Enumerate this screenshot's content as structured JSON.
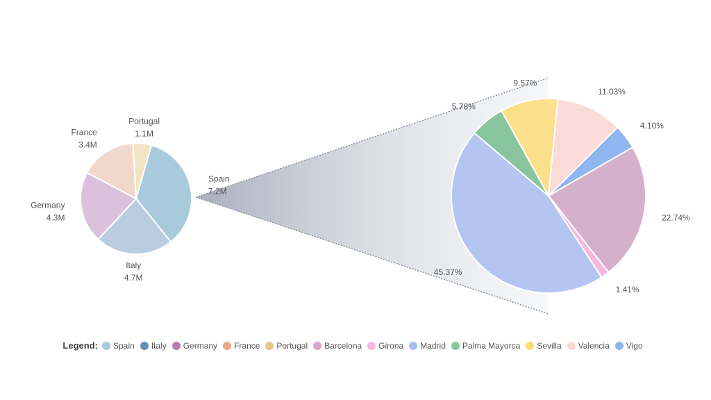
{
  "chart_data": [
    {
      "type": "pie",
      "categories": [
        "Spain",
        "Italy",
        "Germany",
        "France",
        "Portugal"
      ],
      "values": [
        7.2,
        4.7,
        4.3,
        3.4,
        1.1
      ],
      "value_labels": [
        "7.2M",
        "4.7M",
        "4.3M",
        "3.4M",
        "1.1M"
      ],
      "colors": [
        "#a8cadb",
        "#b9cde0",
        "#dcc1dc",
        "#f0d9cc",
        "#f2e3c3"
      ],
      "title": "",
      "exploded_category": "Spain"
    },
    {
      "type": "pie",
      "categories": [
        "Barcelona",
        "Girona",
        "Madrid",
        "Palma Mayorca",
        "Sevilla",
        "Valencia",
        "Vigo"
      ],
      "values": [
        22.74,
        1.41,
        45.37,
        5.78,
        9.57,
        11.03,
        4.1
      ],
      "value_labels": [
        "22.74%",
        "1.41%",
        "45.37%",
        "5.78%",
        "9.57%",
        "11.03%",
        "4.10%"
      ],
      "colors": [
        "#d4b0cb",
        "#f5b8e0",
        "#b3c5f0",
        "#88c49d",
        "#fbdf8a",
        "#fadbd8",
        "#8fb6ee"
      ],
      "title": "",
      "parent_category": "Spain"
    }
  ],
  "legend": {
    "title": "Legend:",
    "items": [
      {
        "label": "Spain",
        "color": "#a8cadb"
      },
      {
        "label": "Italy",
        "color": "#6b8fb3"
      },
      {
        "label": "Germany",
        "color": "#b57fa8"
      },
      {
        "label": "France",
        "color": "#e8ab8c"
      },
      {
        "label": "Portugal",
        "color": "#e3c88e"
      },
      {
        "label": "Barcelona",
        "color": "#d4a6c8"
      },
      {
        "label": "Girona",
        "color": "#f5b8e0"
      },
      {
        "label": "Madrid",
        "color": "#a9bdf0"
      },
      {
        "label": "Palma Mayorca",
        "color": "#88c49d"
      },
      {
        "label": "Sevilla",
        "color": "#fbdf6e"
      },
      {
        "label": "Valencia",
        "color": "#fad9d2"
      },
      {
        "label": "Vigo",
        "color": "#8fb6ee"
      }
    ]
  }
}
